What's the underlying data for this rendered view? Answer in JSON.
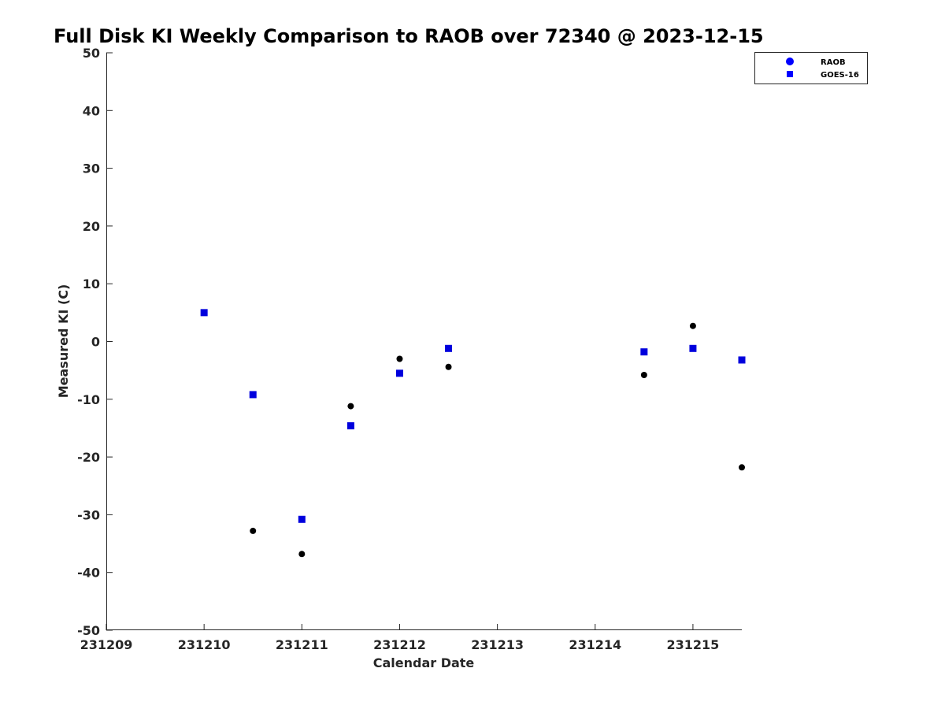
{
  "chart_data": {
    "type": "scatter",
    "title": "Full Disk KI Weekly Comparison to RAOB over 72340 @ 2023-12-15",
    "xlabel": "Calendar Date",
    "ylabel": "Measured KI (C)",
    "xlim": [
      "2023-12-09",
      "2023-12-15 12:00"
    ],
    "ylim": [
      -50,
      50
    ],
    "xticks": [
      {
        "date": "2023-12-09",
        "label": "231209"
      },
      {
        "date": "2023-12-10",
        "label": "231210"
      },
      {
        "date": "2023-12-11",
        "label": "231211"
      },
      {
        "date": "2023-12-12",
        "label": "231212"
      },
      {
        "date": "2023-12-13",
        "label": "231213"
      },
      {
        "date": "2023-12-14",
        "label": "231214"
      },
      {
        "date": "2023-12-15",
        "label": "231215"
      }
    ],
    "yticks": [
      50,
      40,
      30,
      20,
      10,
      0,
      -10,
      -20,
      -30,
      -40,
      -50
    ],
    "grid": false,
    "legend_position": "top-right",
    "series": [
      {
        "name": "RAOB",
        "marker": "circle",
        "color": "#000000",
        "legend_color": "#0000ff",
        "points": [
          {
            "x": "2023-12-10 12:00",
            "y": -32.8
          },
          {
            "x": "2023-12-11 00:00",
            "y": -36.8
          },
          {
            "x": "2023-12-11 12:00",
            "y": -11.2
          },
          {
            "x": "2023-12-12 00:00",
            "y": -3.0
          },
          {
            "x": "2023-12-12 12:00",
            "y": -4.4
          },
          {
            "x": "2023-12-14 12:00",
            "y": -5.8
          },
          {
            "x": "2023-12-15 00:00",
            "y": 2.7
          },
          {
            "x": "2023-12-15 12:00",
            "y": -21.8
          }
        ]
      },
      {
        "name": "GOES-16",
        "marker": "square",
        "color": "#0000dd",
        "legend_color": "#0000ff",
        "points": [
          {
            "x": "2023-12-10 00:00",
            "y": 5.0
          },
          {
            "x": "2023-12-10 12:00",
            "y": -9.2
          },
          {
            "x": "2023-12-11 00:00",
            "y": -30.8
          },
          {
            "x": "2023-12-11 12:00",
            "y": -14.6
          },
          {
            "x": "2023-12-12 00:00",
            "y": -5.5
          },
          {
            "x": "2023-12-12 12:00",
            "y": -1.2
          },
          {
            "x": "2023-12-14 12:00",
            "y": -1.8
          },
          {
            "x": "2023-12-15 00:00",
            "y": -1.2
          },
          {
            "x": "2023-12-15 12:00",
            "y": -3.2
          }
        ]
      }
    ]
  }
}
